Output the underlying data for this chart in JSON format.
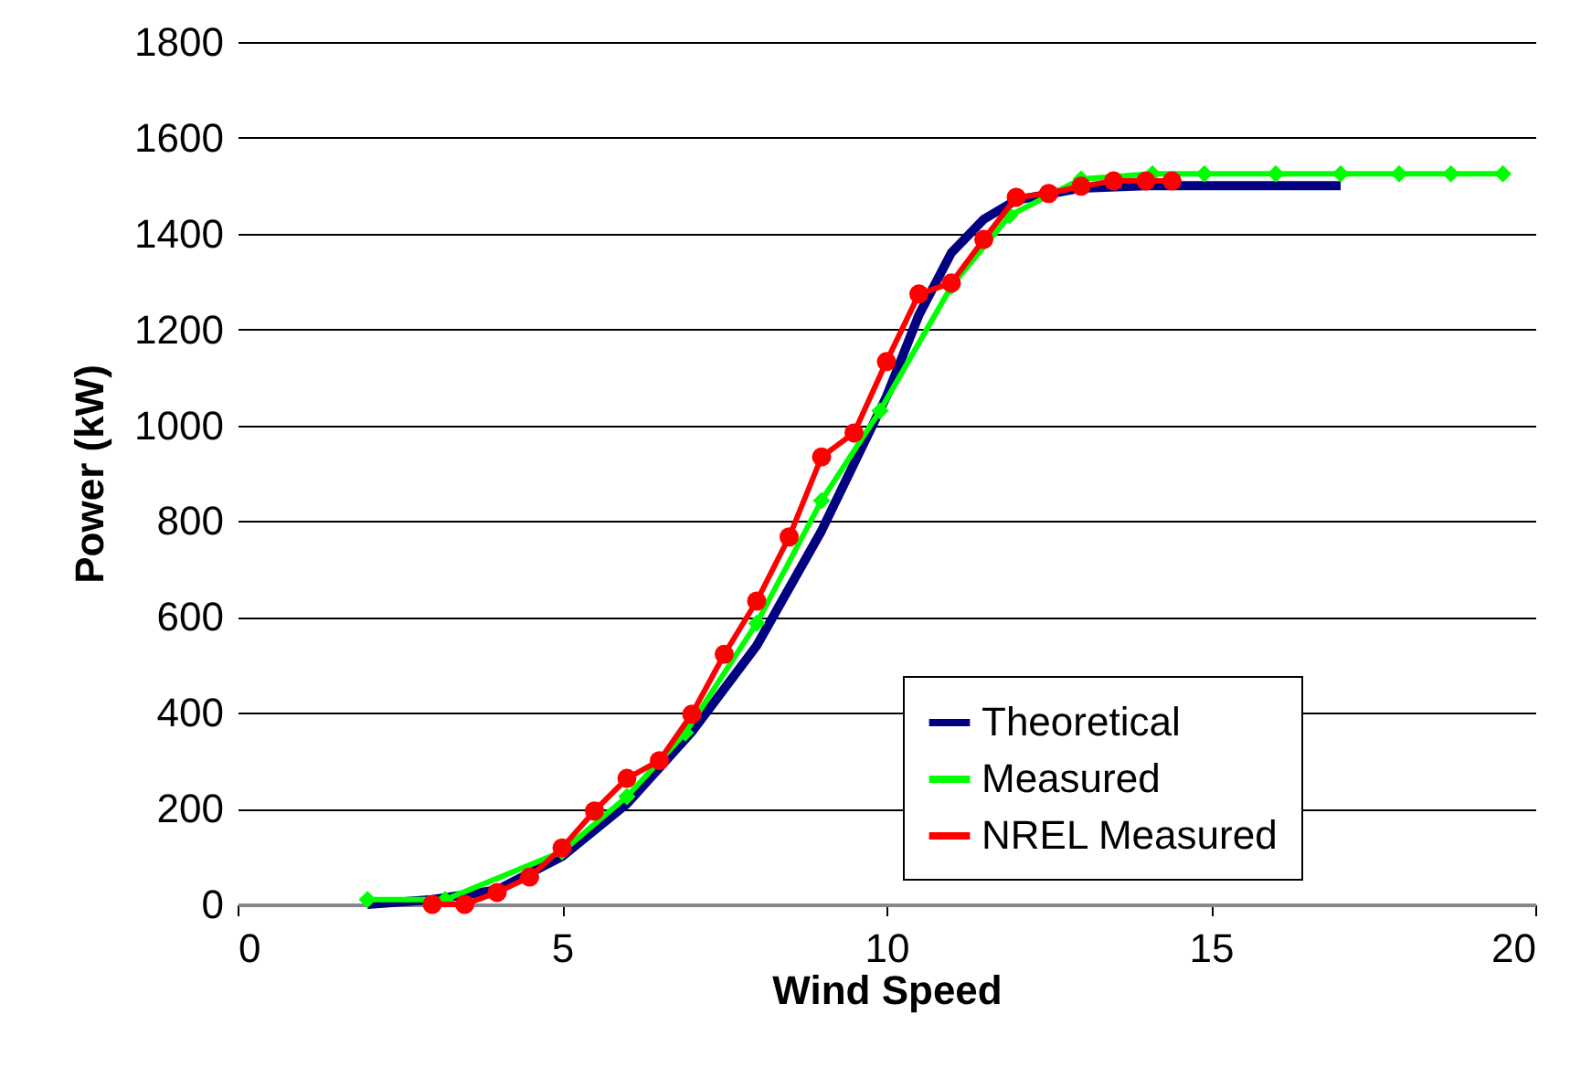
{
  "chart_data": {
    "type": "line",
    "xlabel": "Wind Speed",
    "ylabel": "Power (kW)",
    "xlim": [
      0,
      20
    ],
    "xticks": [
      0,
      5,
      10,
      15,
      20
    ],
    "ylim": [
      0,
      1800
    ],
    "yticks": [
      0,
      200,
      400,
      600,
      800,
      1000,
      1200,
      1400,
      1600,
      1800
    ],
    "grid": "y",
    "legend": "bottom right",
    "series": [
      {
        "name": "Theoretical",
        "color": "#000080",
        "marker": "none",
        "x": [
          2,
          3,
          4,
          5,
          6,
          7,
          8,
          9,
          10,
          10.5,
          11,
          11.5,
          12,
          13,
          14,
          17
        ],
        "values": [
          0,
          10,
          30,
          100,
          210,
          360,
          540,
          780,
          1060,
          1230,
          1360,
          1430,
          1470,
          1495,
          1500,
          1500
        ]
      },
      {
        "name": "Measured",
        "color": "#00ff00",
        "marker": "diamond",
        "x": [
          2,
          3.2,
          5,
          6,
          6.9,
          8,
          9,
          9.9,
          11,
          11.9,
          13,
          14.1,
          14.9,
          16,
          17,
          17.9,
          18.7,
          19.5
        ],
        "values": [
          10,
          10,
          110,
          225,
          358,
          587,
          843,
          1030,
          1290,
          1438,
          1514,
          1525,
          1525,
          1525,
          1525,
          1525,
          1525,
          1525
        ]
      },
      {
        "name": "NREL Measured",
        "color": "#ff0000",
        "marker": "circle",
        "x": [
          3,
          3.5,
          4,
          4.5,
          5,
          5.5,
          6,
          6.5,
          7,
          7.5,
          8,
          8.5,
          9,
          9.5,
          10,
          10.5,
          11,
          11.5,
          12,
          12.5,
          13,
          13.5,
          14,
          14.4
        ],
        "values": [
          0,
          0,
          25,
          57,
          118,
          195,
          263,
          300,
          397,
          522,
          633,
          767,
          934,
          984,
          1133,
          1274,
          1297,
          1388,
          1476,
          1484,
          1499,
          1510,
          1510,
          1510
        ]
      }
    ]
  }
}
